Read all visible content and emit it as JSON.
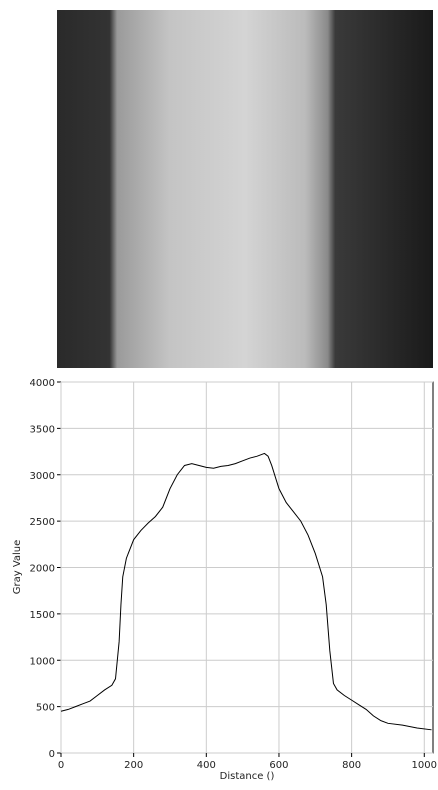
{
  "chart_data": {
    "type": "line",
    "x_label": "Distance ()",
    "y_label": "Gray Value",
    "x": [
      0,
      20,
      40,
      60,
      80,
      100,
      120,
      140,
      150,
      160,
      165,
      170,
      180,
      200,
      220,
      240,
      260,
      280,
      300,
      320,
      340,
      360,
      380,
      400,
      420,
      440,
      460,
      480,
      500,
      520,
      540,
      560,
      570,
      580,
      600,
      620,
      640,
      660,
      680,
      700,
      720,
      730,
      740,
      750,
      760,
      780,
      800,
      820,
      840,
      860,
      880,
      900,
      940,
      980,
      1020
    ],
    "values": [
      450,
      470,
      500,
      530,
      560,
      620,
      680,
      730,
      800,
      1200,
      1600,
      1900,
      2100,
      2300,
      2400,
      2480,
      2550,
      2650,
      2850,
      3000,
      3100,
      3120,
      3100,
      3080,
      3070,
      3090,
      3100,
      3120,
      3150,
      3180,
      3200,
      3230,
      3200,
      3100,
      2850,
      2700,
      2600,
      2500,
      2350,
      2150,
      1900,
      1600,
      1100,
      750,
      680,
      620,
      570,
      520,
      470,
      400,
      350,
      320,
      300,
      270,
      250
    ],
    "color": "#000000",
    "xlim": [
      0,
      1024
    ],
    "xticks": [
      0,
      200,
      400,
      600,
      800,
      1000
    ],
    "ylim": [
      0,
      4000
    ],
    "yticks": [
      0,
      500,
      1000,
      1500,
      2000,
      2500,
      3000,
      3500,
      4000
    ],
    "grid": true
  }
}
